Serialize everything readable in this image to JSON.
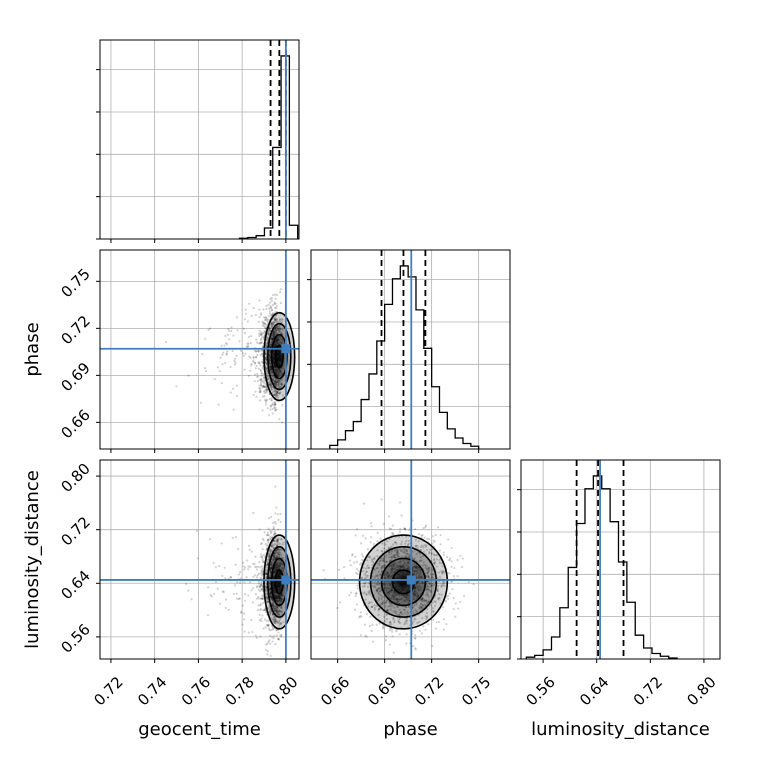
{
  "chart_data": {
    "type": "corner",
    "parameters": [
      "geocent_time",
      "phase",
      "luminosity_distance"
    ],
    "truth_color": "#3f7fbf",
    "truths": {
      "geocent_time": 0.8,
      "phase": 0.707,
      "luminosity_distance": 0.645
    },
    "quantiles": {
      "geocent_time": [
        0.793,
        0.797,
        0.8
      ],
      "phase": [
        0.688,
        0.702,
        0.716
      ],
      "luminosity_distance": [
        0.61,
        0.642,
        0.68
      ]
    },
    "ranges": {
      "geocent_time": [
        0.715,
        0.806
      ],
      "phase": [
        0.643,
        0.77
      ],
      "luminosity_distance": [
        0.527,
        0.824
      ]
    },
    "ticks": {
      "geocent_time": [
        0.72,
        0.74,
        0.76,
        0.78,
        0.8
      ],
      "phase": [
        0.66,
        0.69,
        0.72,
        0.75
      ],
      "luminosity_distance": [
        0.56,
        0.64,
        0.72,
        0.8
      ]
    },
    "tick_labels": {
      "geocent_time": [
        "0.72",
        "0.74",
        "0.76",
        "0.78",
        "0.80"
      ],
      "phase": [
        "0.66",
        "0.69",
        "0.72",
        "0.75"
      ],
      "luminosity_distance": [
        "0.56",
        "0.64",
        "0.72",
        "0.80"
      ]
    },
    "hist": {
      "geocent_time": {
        "start": 0.7788,
        "width": 0.0038,
        "counts": [
          0.004,
          0.008,
          0.018,
          0.06,
          0.5,
          1.0,
          0.075
        ]
      },
      "phase": {
        "start": 0.655,
        "width": 0.005,
        "counts": [
          0.02,
          0.05,
          0.1,
          0.15,
          0.27,
          0.41,
          0.59,
          0.79,
          0.93,
          1.0,
          0.94,
          0.76,
          0.55,
          0.34,
          0.2,
          0.11,
          0.06,
          0.03,
          0.015
        ]
      },
      "luminosity_distance": {
        "start": 0.535,
        "width": 0.0125,
        "counts": [
          0.01,
          0.02,
          0.05,
          0.12,
          0.28,
          0.5,
          0.74,
          0.93,
          1.0,
          0.93,
          0.75,
          0.53,
          0.31,
          0.13,
          0.06,
          0.03,
          0.015,
          0.005
        ]
      }
    },
    "grid": true,
    "xlabels": [
      "geocent_time",
      "phase",
      "luminosity_distance"
    ],
    "ylabels": [
      "",
      "phase",
      "luminosity_distance"
    ]
  }
}
